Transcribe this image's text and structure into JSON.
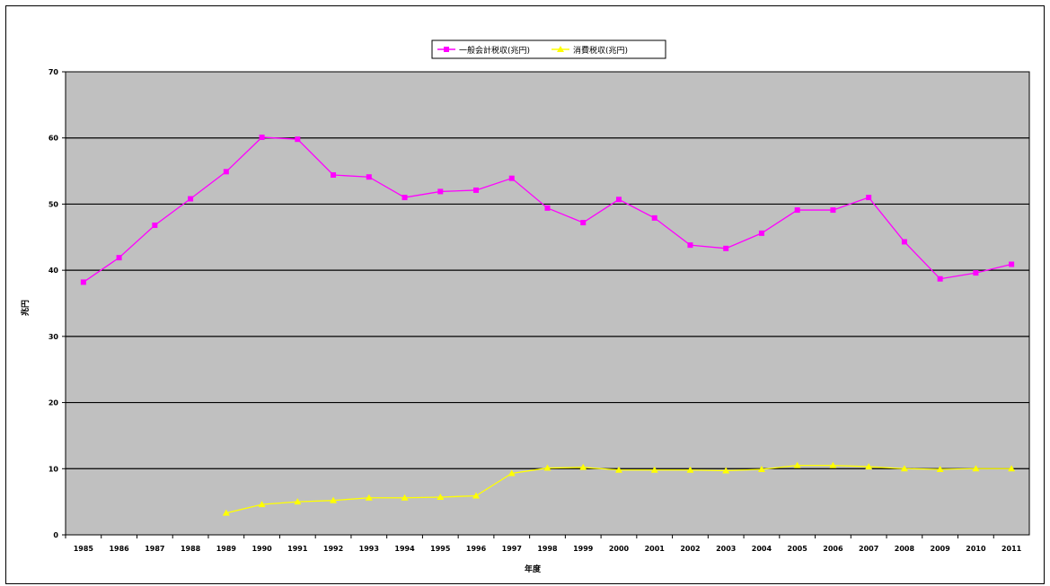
{
  "chart_data": {
    "type": "line",
    "title": "",
    "xlabel": "年度",
    "ylabel": "兆円",
    "ylim": [
      0,
      70
    ],
    "yticks": [
      0,
      10,
      20,
      30,
      40,
      50,
      60,
      70
    ],
    "grid": true,
    "legend_position": "top-center",
    "plot_background": "#c0c0c0",
    "categories": [
      "1985",
      "1986",
      "1987",
      "1988",
      "1989",
      "1990",
      "1991",
      "1992",
      "1993",
      "1994",
      "1995",
      "1996",
      "1997",
      "1998",
      "1999",
      "2000",
      "2001",
      "2002",
      "2003",
      "2004",
      "2005",
      "2006",
      "2007",
      "2008",
      "2009",
      "2010",
      "2011"
    ],
    "series": [
      {
        "name": "一般会計税収(兆円)",
        "color": "#ff00ff",
        "marker": "square",
        "values": [
          38.2,
          41.9,
          46.8,
          50.8,
          54.9,
          60.1,
          59.8,
          54.4,
          54.1,
          51.0,
          51.9,
          52.1,
          53.9,
          49.4,
          47.2,
          50.7,
          47.9,
          43.8,
          43.3,
          45.6,
          49.1,
          49.1,
          51.0,
          44.3,
          38.7,
          39.6,
          40.9
        ]
      },
      {
        "name": "消費税収(兆円)",
        "color": "#ffff00",
        "marker": "triangle",
        "values": [
          null,
          null,
          null,
          null,
          3.3,
          4.6,
          5.0,
          5.2,
          5.6,
          5.6,
          5.7,
          5.9,
          9.3,
          10.1,
          10.2,
          9.8,
          9.8,
          9.8,
          9.7,
          9.9,
          10.5,
          10.5,
          10.3,
          10.0,
          9.9,
          10.0,
          10.0
        ]
      }
    ]
  }
}
